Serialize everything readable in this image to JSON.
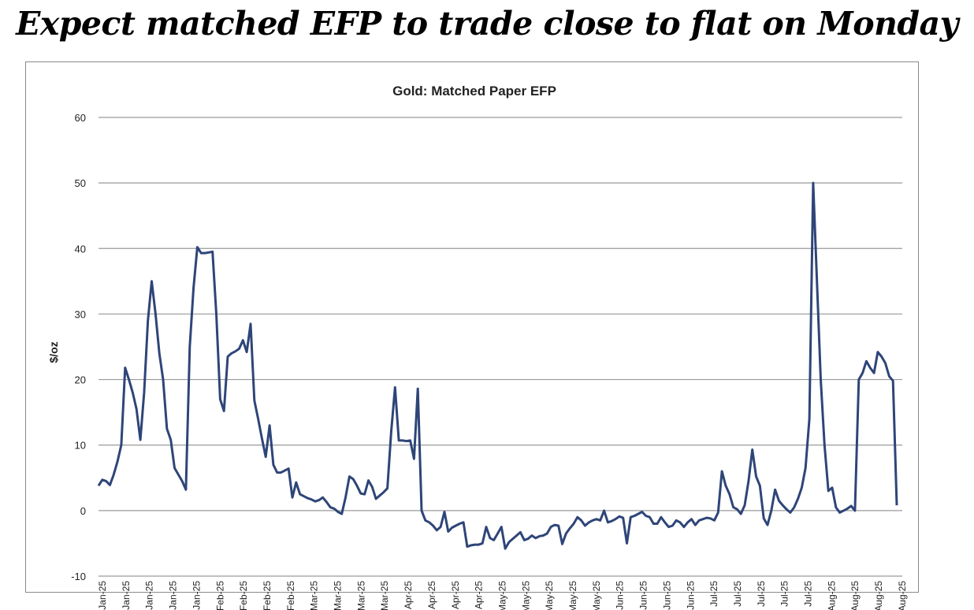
{
  "headline": "Expect matched EFP to trade close to flat on Monday",
  "chart_data": {
    "type": "line",
    "title": "Gold: Matched Paper EFP",
    "xlabel": "",
    "ylabel": "$/oz",
    "ylim": [
      -10,
      60
    ],
    "yticks": [
      -10,
      0,
      10,
      20,
      30,
      40,
      50,
      60
    ],
    "grid": true,
    "line_color": "#2e4578",
    "x_ticks": [
      "Jan-25",
      "Jan-25",
      "Jan-25",
      "Jan-25",
      "Jan-25",
      "Feb-25",
      "Feb-25",
      "Feb-25",
      "Feb-25",
      "Mar-25",
      "Mar-25",
      "Mar-25",
      "Mar-25",
      "Apr-25",
      "Apr-25",
      "Apr-25",
      "Apr-25",
      "May-25",
      "May-25",
      "May-25",
      "May-25",
      "May-25",
      "Jun-25",
      "Jun-25",
      "Jun-25",
      "Jun-25",
      "Jul-25",
      "Jul-25",
      "Jul-25",
      "Jul-25",
      "Jul-25",
      "Aug-25",
      "Aug-25",
      "Aug-25",
      "Aug-25"
    ],
    "series": [
      {
        "values": [
          3.8,
          4.7,
          4.5,
          3.9,
          5.5,
          7.5,
          10,
          21.8,
          20,
          18,
          15.5,
          10.8,
          18,
          29,
          35,
          30,
          24,
          20,
          12.5,
          10.8,
          6.5,
          5.5,
          4.5,
          3.2,
          25,
          34,
          40.2,
          39.3,
          39.3,
          39.4,
          39.5,
          30,
          17,
          15.2,
          23.5,
          24,
          24.3,
          24.7,
          26,
          24.2,
          28.5,
          16.8,
          14,
          11,
          8.2,
          13,
          7,
          5.8,
          5.8,
          6.1,
          6.4,
          2,
          4.3,
          2.5,
          2.2,
          1.9,
          1.7,
          1.4,
          1.6,
          2,
          1.3,
          0.5,
          0.3,
          -0.2,
          -0.5,
          2,
          5.2,
          4.8,
          3.8,
          2.6,
          2.5,
          4.6,
          3.6,
          1.8,
          2.3,
          2.8,
          3.4,
          12,
          18.8,
          10.7,
          10.7,
          10.6,
          10.7,
          7.9,
          18.6,
          0,
          -1.5,
          -1.8,
          -2.3,
          -3,
          -2.5,
          -0.2,
          -3.2,
          -2.6,
          -2.3,
          -2,
          -1.8,
          -5.5,
          -5.3,
          -5.2,
          -5.2,
          -5,
          -2.5,
          -4.2,
          -4.5,
          -3.5,
          -2.5,
          -5.8,
          -4.8,
          -4.3,
          -3.8,
          -3.3,
          -4.5,
          -4.3,
          -3.8,
          -4.2,
          -3.9,
          -3.8,
          -3.5,
          -2.5,
          -2.2,
          -2.3,
          -5.1,
          -3.5,
          -2.7,
          -2,
          -1,
          -1.5,
          -2.3,
          -1.8,
          -1.5,
          -1.3,
          -1.5,
          0,
          -1.8,
          -1.6,
          -1.3,
          -0.9,
          -1.1,
          -5,
          -1,
          -0.8,
          -0.5,
          -0.2,
          -0.8,
          -1,
          -2,
          -2,
          -1,
          -1.8,
          -2.5,
          -2.3,
          -1.5,
          -1.8,
          -2.5,
          -1.8,
          -1.3,
          -2.2,
          -1.5,
          -1.3,
          -1.1,
          -1.2,
          -1.5,
          -0.3,
          6,
          3.8,
          2.5,
          0.5,
          0.2,
          -0.5,
          0.8,
          4.5,
          9.3,
          5.2,
          3.8,
          -1.2,
          -2.2,
          0,
          3.2,
          1.5,
          0.8,
          0.2,
          -0.3,
          0.5,
          1.8,
          3.5,
          6.5,
          14,
          50,
          35,
          20,
          10,
          3,
          3.5,
          0.5,
          -0.3,
          0,
          0.3,
          0.7,
          0,
          20,
          21,
          22.8,
          21.8,
          21,
          24.2,
          23.5,
          22.5,
          20.5,
          19.8,
          0.8
        ]
      }
    ]
  }
}
